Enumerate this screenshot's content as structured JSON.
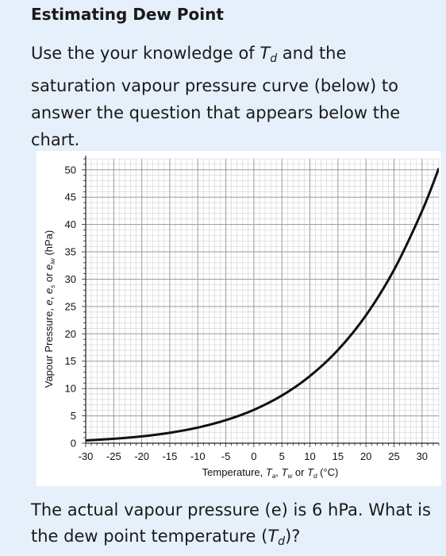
{
  "header": {
    "title": "Estimating Dew Point"
  },
  "intro": {
    "part1": "Use the your knowledge of ",
    "sym": "T",
    "sub": "d",
    "part2": " and the saturation vapour pressure curve (below) to answer the question that appears below the chart."
  },
  "question": {
    "part1": "The actual vapour pressure (e) is 6 hPa. What is the dew point temperature (",
    "sym": "T",
    "sub": "d",
    "part2": ")?"
  },
  "chart_data": {
    "type": "line",
    "title": "",
    "xlabel": "Temperature, Tₐ, Tᵤ or Tₑ (°C)",
    "xlabel_parts": {
      "pre": "Temperature, ",
      "t1": "T",
      "s1": "a",
      "mid1": ", ",
      "t2": "T",
      "s2": "w",
      "mid2": " or ",
      "t3": "T",
      "s3": "d",
      "post": " (°C)"
    },
    "ylabel_parts": {
      "pre": "Vapour Pressure, ",
      "v1": "e",
      "mid1": ", ",
      "v2": "e",
      "s2": "s",
      "mid2": " or ",
      "v3": "e",
      "s3": "iw",
      "post": " (hPa)"
    },
    "xlim": [
      -30,
      33
    ],
    "ylim": [
      0,
      52
    ],
    "xticks": [
      -30,
      -25,
      -20,
      -15,
      -10,
      -5,
      0,
      5,
      10,
      15,
      20,
      25,
      30
    ],
    "yticks": [
      0,
      5,
      10,
      15,
      20,
      25,
      30,
      35,
      40,
      45,
      50
    ],
    "grid": true,
    "series": [
      {
        "x": [
          -31,
          -30,
          -25,
          -20,
          -15,
          -10,
          -5,
          0,
          5,
          10,
          15,
          20,
          25,
          30,
          33
        ],
        "y": [
          0.45,
          0.51,
          0.81,
          1.25,
          1.91,
          2.86,
          4.22,
          6.11,
          8.72,
          12.28,
          17.05,
          23.39,
          31.7,
          42.46,
          50.3
        ]
      }
    ],
    "colors": {
      "curve": "#111111",
      "grid_major": "#9a9a9a",
      "grid_minor": "#d0d0d0"
    }
  }
}
